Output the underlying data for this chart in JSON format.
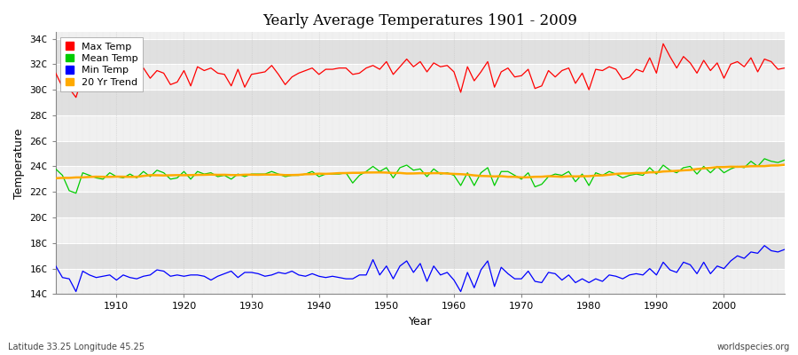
{
  "title": "Yearly Average Temperatures 1901 - 2009",
  "xlabel": "Year",
  "ylabel": "Temperature",
  "footnote_left": "Latitude 33.25 Longitude 45.25",
  "footnote_right": "worldspecies.org",
  "year_start": 1901,
  "year_end": 2009,
  "ylim": [
    14,
    34.5
  ],
  "yticks": [
    14,
    16,
    18,
    20,
    22,
    24,
    26,
    28,
    30,
    32,
    34
  ],
  "ytick_labels": [
    "14C",
    "16C",
    "18C",
    "20C",
    "22C",
    "24C",
    "26C",
    "28C",
    "30C",
    "32C",
    "34C"
  ],
  "xticks": [
    1910,
    1920,
    1930,
    1940,
    1950,
    1960,
    1970,
    1980,
    1990,
    2000
  ],
  "colors": {
    "max": "#ff0000",
    "mean": "#00cc00",
    "min": "#0000ff",
    "trend": "#ffaa00",
    "bg_light": "#f0f0f0",
    "bg_dark": "#e0e0e0",
    "bg_fig": "#ffffff",
    "grid_h": "#ffffff",
    "grid_v": "#cccccc"
  },
  "legend": [
    {
      "label": "Max Temp",
      "color": "#ff0000"
    },
    {
      "label": "Mean Temp",
      "color": "#00cc00"
    },
    {
      "label": "Min Temp",
      "color": "#0000ff"
    },
    {
      "label": "20 Yr Trend",
      "color": "#ffaa00"
    }
  ],
  "max_temp": [
    31.3,
    30.2,
    30.1,
    29.4,
    31.1,
    31.2,
    31.4,
    30.9,
    31.5,
    31.3,
    30.4,
    31.2,
    31.2,
    31.7,
    30.9,
    31.5,
    31.3,
    30.4,
    30.6,
    31.5,
    30.3,
    31.8,
    31.5,
    31.7,
    31.3,
    31.2,
    30.3,
    31.6,
    30.2,
    31.2,
    31.3,
    31.4,
    31.9,
    31.2,
    30.4,
    31.0,
    31.3,
    31.5,
    31.7,
    31.2,
    31.6,
    31.6,
    31.7,
    31.7,
    31.2,
    31.3,
    31.7,
    31.9,
    31.6,
    32.2,
    31.2,
    31.8,
    32.4,
    31.8,
    32.2,
    31.4,
    32.1,
    31.8,
    31.9,
    31.4,
    29.8,
    31.8,
    30.7,
    31.4,
    32.2,
    30.2,
    31.4,
    31.7,
    31.0,
    31.1,
    31.6,
    30.1,
    30.3,
    31.5,
    31.0,
    31.5,
    31.7,
    30.5,
    31.3,
    30.0,
    31.6,
    31.5,
    31.8,
    31.6,
    30.8,
    31.0,
    31.6,
    31.4,
    32.5,
    31.3,
    33.6,
    32.6,
    31.7,
    32.6,
    32.1,
    31.3,
    32.3,
    31.5,
    32.1,
    30.9,
    32.0,
    32.2,
    31.8,
    32.5,
    31.4,
    32.4,
    32.2,
    31.6,
    31.7
  ],
  "mean_temp": [
    23.8,
    23.3,
    22.1,
    21.9,
    23.5,
    23.3,
    23.1,
    23.0,
    23.5,
    23.2,
    23.1,
    23.4,
    23.1,
    23.6,
    23.2,
    23.7,
    23.5,
    23.0,
    23.1,
    23.6,
    23.0,
    23.6,
    23.4,
    23.5,
    23.2,
    23.3,
    23.0,
    23.4,
    23.2,
    23.4,
    23.4,
    23.4,
    23.6,
    23.4,
    23.2,
    23.3,
    23.3,
    23.4,
    23.6,
    23.2,
    23.4,
    23.4,
    23.4,
    23.5,
    22.7,
    23.3,
    23.6,
    24.0,
    23.6,
    23.9,
    23.1,
    23.9,
    24.1,
    23.7,
    23.8,
    23.2,
    23.8,
    23.4,
    23.5,
    23.3,
    22.5,
    23.5,
    22.5,
    23.5,
    23.9,
    22.5,
    23.6,
    23.6,
    23.3,
    23.0,
    23.5,
    22.4,
    22.6,
    23.2,
    23.4,
    23.3,
    23.6,
    22.8,
    23.4,
    22.5,
    23.5,
    23.3,
    23.6,
    23.4,
    23.1,
    23.3,
    23.4,
    23.3,
    23.9,
    23.4,
    24.1,
    23.7,
    23.5,
    23.9,
    24.0,
    23.4,
    24.0,
    23.5,
    24.0,
    23.5,
    23.8,
    24.0,
    23.9,
    24.4,
    24.0,
    24.6,
    24.4,
    24.3,
    24.5
  ],
  "min_temp": [
    16.2,
    15.3,
    15.2,
    14.2,
    15.8,
    15.5,
    15.3,
    15.4,
    15.5,
    15.1,
    15.5,
    15.3,
    15.2,
    15.4,
    15.5,
    15.9,
    15.8,
    15.4,
    15.5,
    15.4,
    15.5,
    15.5,
    15.4,
    15.1,
    15.4,
    15.6,
    15.8,
    15.3,
    15.7,
    15.7,
    15.6,
    15.4,
    15.5,
    15.7,
    15.6,
    15.8,
    15.5,
    15.4,
    15.6,
    15.4,
    15.3,
    15.4,
    15.3,
    15.2,
    15.2,
    15.5,
    15.5,
    16.7,
    15.5,
    16.2,
    15.2,
    16.2,
    16.6,
    15.7,
    16.4,
    15.0,
    16.2,
    15.5,
    15.7,
    15.1,
    14.2,
    15.7,
    14.5,
    15.9,
    16.6,
    14.6,
    16.1,
    15.6,
    15.2,
    15.2,
    15.8,
    15.0,
    14.9,
    15.7,
    15.6,
    15.1,
    15.5,
    14.9,
    15.2,
    14.9,
    15.2,
    15.0,
    15.5,
    15.4,
    15.2,
    15.5,
    15.6,
    15.5,
    16.0,
    15.5,
    16.5,
    15.9,
    15.7,
    16.5,
    16.3,
    15.6,
    16.5,
    15.6,
    16.2,
    16.0,
    16.6,
    17.0,
    16.8,
    17.3,
    17.2,
    17.8,
    17.4,
    17.3,
    17.5
  ]
}
